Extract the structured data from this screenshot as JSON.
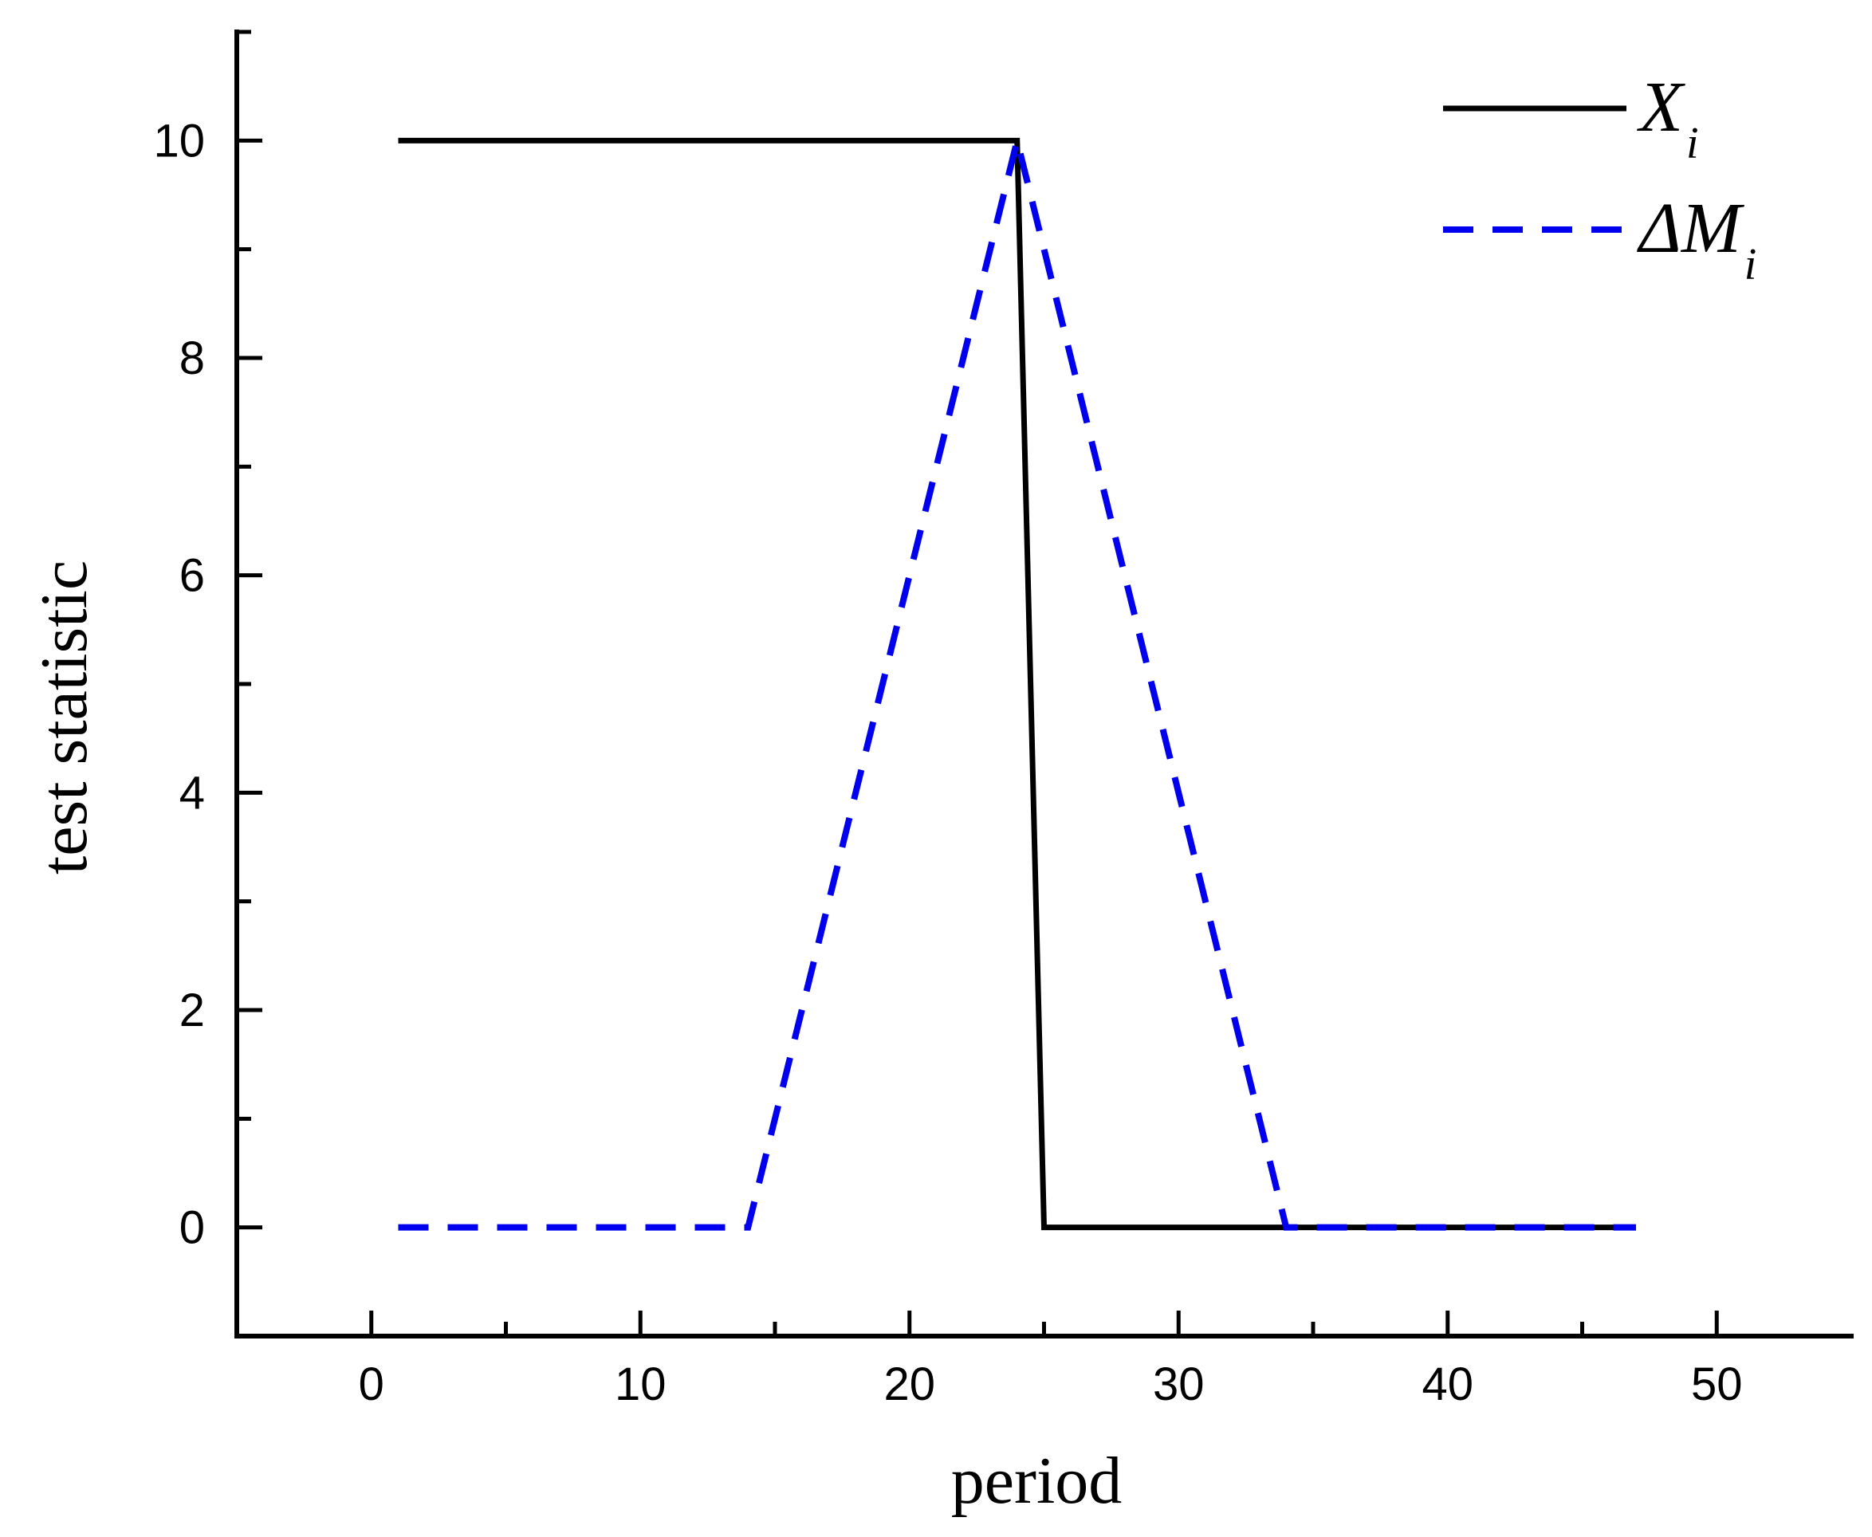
{
  "chart_data": {
    "type": "line",
    "title": "",
    "xlabel": "period",
    "ylabel": "test statistic",
    "xlim": [
      -5,
      55
    ],
    "ylim": [
      -1,
      11
    ],
    "x_ticks": [
      0,
      10,
      20,
      30,
      40,
      50
    ],
    "x_minor_ticks": [
      5,
      15,
      25,
      35,
      45
    ],
    "y_ticks": [
      0,
      2,
      4,
      6,
      8,
      10
    ],
    "y_minor_ticks": [
      1,
      3,
      5,
      7,
      9
    ],
    "grid": false,
    "legend_position": "top-right",
    "series": [
      {
        "name": "X",
        "subscript": "i",
        "style": "solid",
        "color": "#000000",
        "x": [
          1,
          24,
          25,
          47
        ],
        "y": [
          10,
          10,
          0,
          0
        ]
      },
      {
        "name": "ΔM",
        "subscript": "i",
        "style": "dashed",
        "color": "#0000ee",
        "x": [
          1,
          14,
          24,
          34,
          47
        ],
        "y": [
          0,
          0,
          10,
          0,
          0
        ]
      }
    ]
  }
}
